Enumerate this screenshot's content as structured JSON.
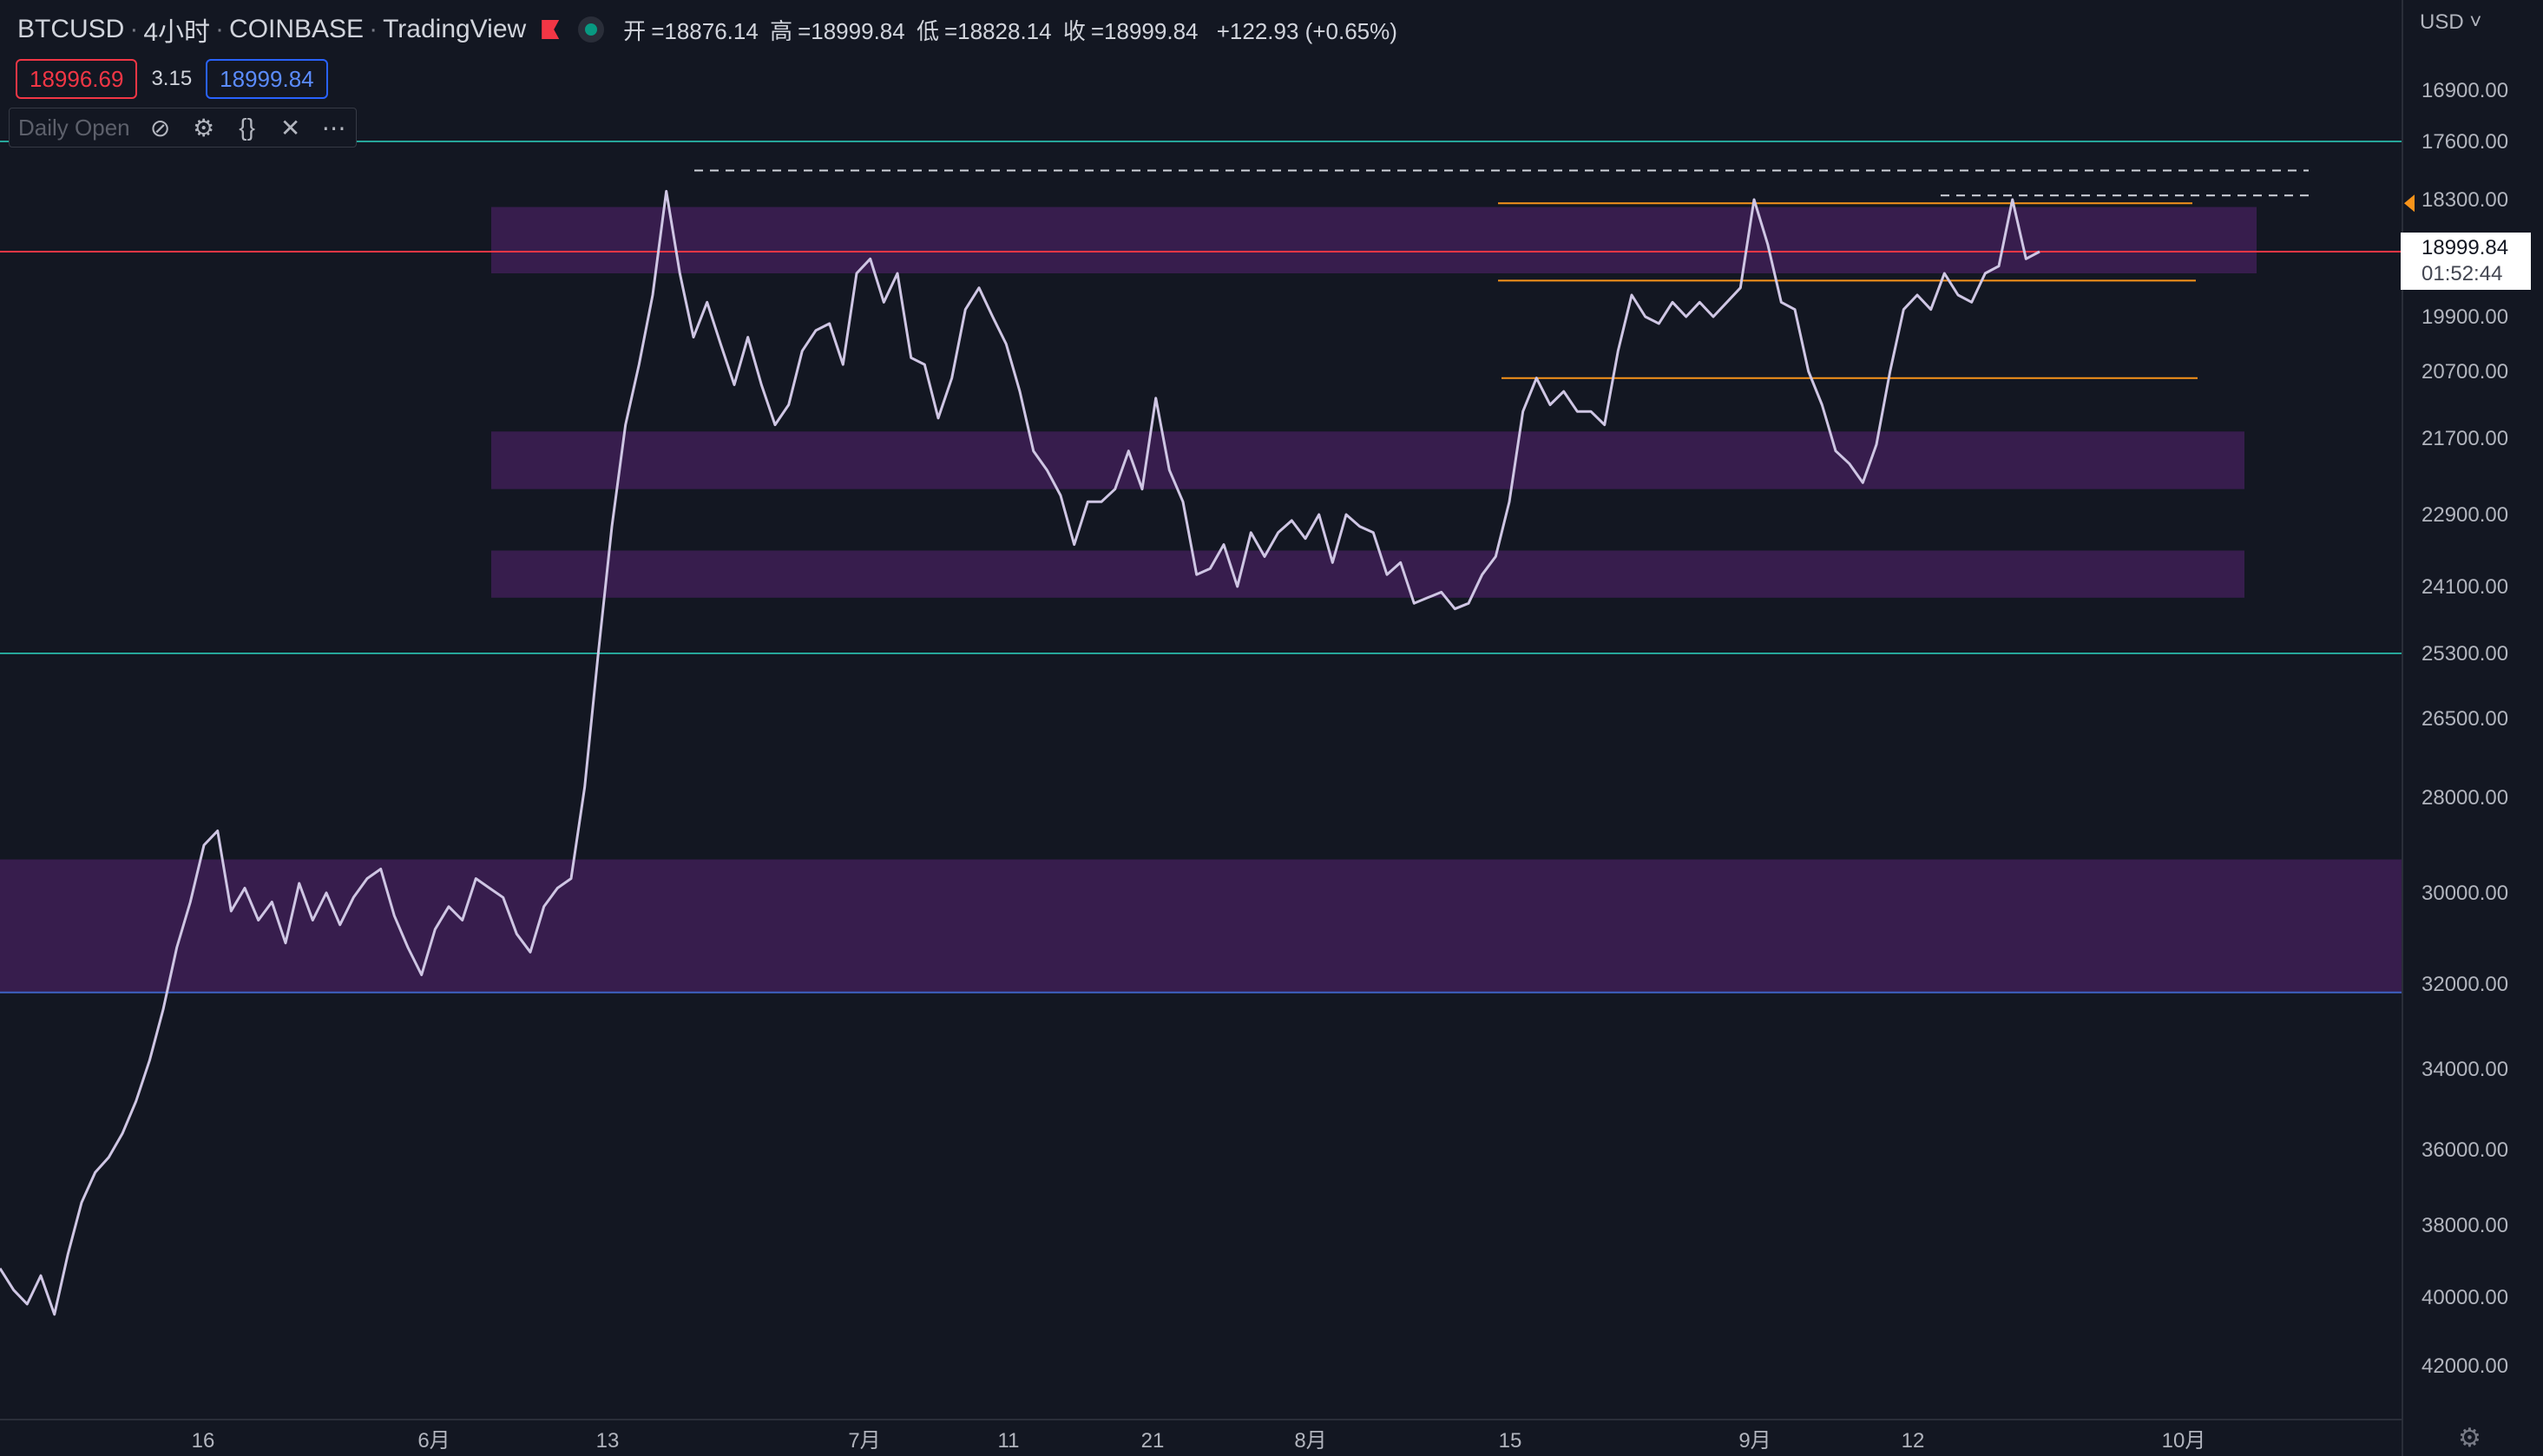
{
  "header": {
    "symbol": "BTCUSD",
    "interval": "4小时",
    "exchange": "COINBASE",
    "platform": "TradingView",
    "ohlc": {
      "open_label": "开",
      "open": "18876.14",
      "high_label": "高",
      "high": "18999.84",
      "low_label": "低",
      "low": "18828.14",
      "close_label": "收",
      "close": "18999.84",
      "change": "+122.93 (+0.65%)"
    }
  },
  "quote": {
    "bid": "18996.69",
    "spread": "3.15",
    "ask": "18999.84"
  },
  "indicator": {
    "name": "Daily Open",
    "icons": [
      "eye-off-icon",
      "gear-icon",
      "braces-icon",
      "close-icon",
      "more-icon"
    ]
  },
  "currency_menu": "USD",
  "last_price": {
    "price": "18999.84",
    "countdown": "01:52:44"
  },
  "colors": {
    "background": "#131722",
    "zone": "#371d4d",
    "candle": "#cfc6e4",
    "red_line": "#f23645",
    "teal_line": "#26a69a",
    "blue_line": "#3f63c4",
    "orange_line": "#f7931a",
    "dashed": "#d1d4dc"
  },
  "chart_data": {
    "type": "line",
    "title": "",
    "symbol": "BTCUSD",
    "axis_inverted": true,
    "y_ticks": [
      "16900.00",
      "17600.00",
      "18300.00",
      "19000.00",
      "19900.00",
      "20700.00",
      "21700.00",
      "22900.00",
      "24100.00",
      "25300.00",
      "26500.00",
      "28000.00",
      "30000.00",
      "32000.00",
      "34000.00",
      "36000.00",
      "38000.00",
      "40000.00",
      "42000.00"
    ],
    "x_ticks": [
      "16",
      "6月",
      "13",
      "7月",
      "11",
      "21",
      "8月",
      "15",
      "9月",
      "12",
      "10月"
    ],
    "series": [
      {
        "values": [
          39200,
          39800,
          40200,
          39400,
          40500,
          38800,
          37400,
          36600,
          36200,
          35600,
          34800,
          33800,
          32600,
          31200,
          30200,
          29000,
          28700,
          30400,
          29900,
          30600,
          30200,
          31100,
          29800,
          30600,
          30000,
          30700,
          30100,
          29700,
          29500,
          30500,
          31200,
          31800,
          30800,
          30300,
          30600,
          29700,
          29900,
          30100,
          30900,
          31300,
          30300,
          29900,
          29700,
          27800,
          25300,
          23100,
          21500,
          20600,
          19600,
          18200,
          19300,
          20200,
          19700,
          20300,
          20900,
          20200,
          20900,
          21500,
          21200,
          20400,
          20100,
          20000,
          20600,
          19300,
          19100,
          19700,
          19300,
          20500,
          20600,
          21400,
          20800,
          19800,
          19500,
          19900,
          20300,
          21000,
          21900,
          22200,
          22600,
          23400,
          22700,
          22700,
          22500,
          21900,
          22500,
          21100,
          22200,
          22700,
          23900,
          23800,
          23400,
          24100,
          23200,
          23600,
          23200,
          23000,
          23300,
          22900,
          23700,
          22900,
          23100,
          23200,
          23900,
          23700,
          24400,
          24300,
          24200,
          24500,
          24400,
          23900,
          23600,
          22700,
          21300,
          20800,
          21200,
          21000,
          21300,
          21300,
          21500,
          20400,
          19600,
          19900,
          20000,
          19700,
          19900,
          19700,
          19900,
          19700,
          19500,
          18300,
          18900,
          19700,
          19800,
          20700,
          21200,
          21900,
          22100,
          22400,
          21800,
          20700,
          19800,
          19600,
          19800,
          19300,
          19600,
          19700,
          19300,
          19200,
          18300,
          19100,
          18999.84
        ]
      }
    ],
    "horizontal_lines": [
      {
        "price": 19000,
        "style": "solid",
        "color": "red"
      },
      {
        "price": 17600,
        "style": "solid",
        "color": "teal"
      },
      {
        "price": 25300,
        "style": "solid",
        "color": "teal"
      },
      {
        "price": 32200,
        "style": "solid",
        "color": "blue"
      }
    ],
    "zones": [
      {
        "from": 18400,
        "to": 19300
      },
      {
        "from": 21600,
        "to": 22500
      },
      {
        "from": 23500,
        "to": 24300
      },
      {
        "from": 29300,
        "to": 32200
      }
    ],
    "orange_levels": [
      18350,
      19400,
      20800
    ],
    "dashed_levels": [
      17950,
      18250
    ],
    "grid": false
  }
}
